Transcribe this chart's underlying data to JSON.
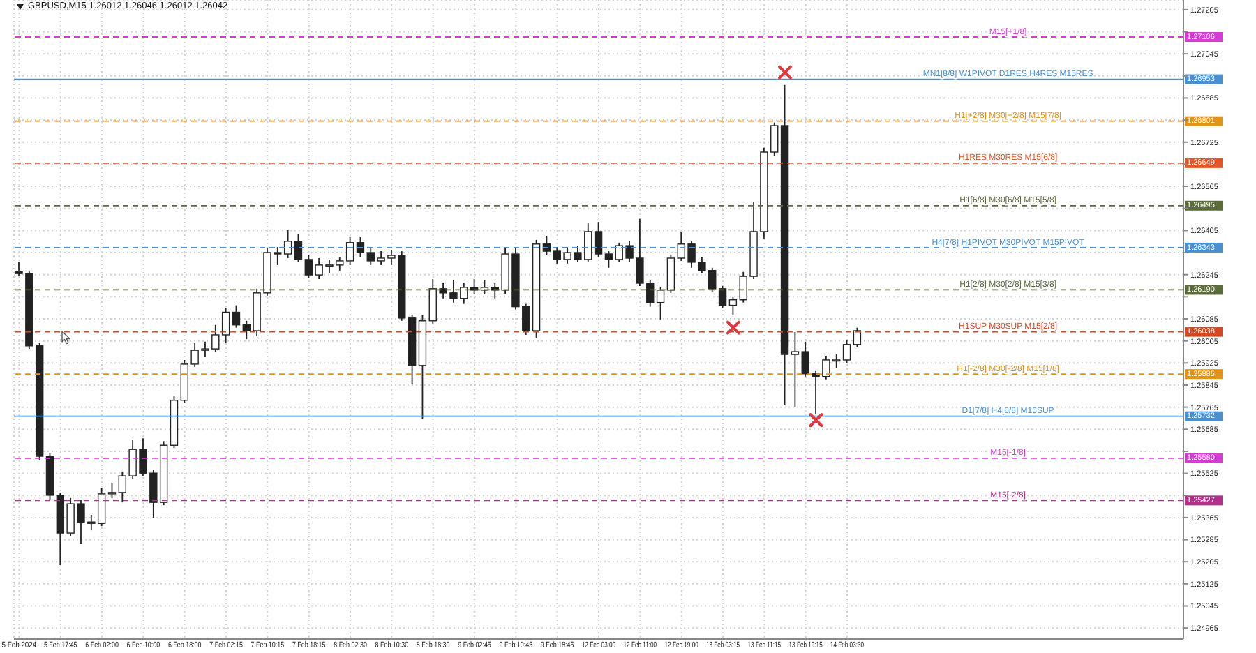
{
  "chart_data": {
    "type": "candlestick",
    "title": "GBPUSD,M15 1.26012 1.26046 1.26012 1.26042",
    "color": "#222222",
    "grid": true,
    "ylim": [
      1.24925,
      1.2724
    ],
    "yticks": [
      1.27205,
      {
        "value": 1.27125,
        "label": null
      },
      1.27045,
      {
        "value": 1.26965,
        "label": null
      },
      1.26885,
      {
        "value": 1.26805,
        "label": null
      },
      1.26725,
      {
        "value": 1.26645,
        "label": null
      },
      1.26565,
      {
        "value": 1.26485,
        "label": null
      },
      1.26405,
      {
        "value": 1.26325,
        "label": null
      },
      1.26245,
      {
        "value": 1.26165,
        "label": null
      },
      1.26085,
      1.26005,
      1.25925,
      1.25845,
      1.25765,
      1.25685,
      {
        "value": 1.25605,
        "label": null
      },
      1.25525,
      {
        "value": 1.25445,
        "label": null
      },
      1.25365,
      1.25285,
      1.25205,
      1.25125,
      1.25045,
      1.24965
    ],
    "categories": [
      "5 Feb 2024",
      null,
      null,
      null,
      "5 Feb 17:45",
      null,
      null,
      null,
      "6 Feb 02:00",
      null,
      null,
      null,
      "6 Feb 10:00",
      null,
      null,
      null,
      "6 Feb 18:00",
      null,
      null,
      null,
      "7 Feb 02:15",
      null,
      null,
      null,
      "7 Feb 10:15",
      null,
      null,
      null,
      "7 Feb 18:15",
      null,
      null,
      null,
      "8 Feb 02:30",
      null,
      null,
      null,
      "8 Feb 10:30",
      null,
      null,
      null,
      "8 Feb 18:30",
      null,
      null,
      null,
      "9 Feb 02:45",
      null,
      null,
      null,
      "9 Feb 10:45",
      null,
      null,
      null,
      "9 Feb 18:45",
      null,
      null,
      null,
      "12 Feb 03:00",
      null,
      null,
      null,
      "12 Feb 11:00",
      null,
      null,
      null,
      "12 Feb 19:00",
      null,
      null,
      null,
      "13 Feb 03:15",
      null,
      null,
      null,
      "13 Feb 11:15",
      null,
      null,
      null,
      "13 Feb 19:15",
      null,
      null,
      null,
      "14 Feb 03:30",
      null,
      null,
      null,
      null,
      null,
      null,
      null,
      null,
      null,
      null,
      null,
      null,
      null,
      null,
      null,
      null,
      null,
      null,
      null,
      null,
      null,
      null,
      null,
      null,
      null,
      null,
      null,
      null,
      null,
      null,
      null,
      null
    ],
    "ohlc": [
      [
        1.26255,
        1.2629,
        1.26239,
        1.26249
      ],
      [
        1.26249,
        1.2626,
        1.25976,
        1.25987
      ],
      [
        1.25987,
        1.25997,
        1.25572,
        1.25587
      ],
      [
        1.25587,
        1.25597,
        1.2543,
        1.25446
      ],
      [
        1.25446,
        1.25456,
        1.25193,
        1.25309
      ],
      [
        1.25309,
        1.25436,
        1.25299,
        1.25415
      ],
      [
        1.25415,
        1.2543,
        1.25269,
        1.25349
      ],
      [
        1.25349,
        1.25375,
        1.25319,
        1.25344
      ],
      [
        1.25344,
        1.25471,
        1.25334,
        1.25451
      ],
      [
        1.25451,
        1.25491,
        1.25436,
        1.25456
      ],
      [
        1.25456,
        1.25532,
        1.2542,
        1.25516
      ],
      [
        1.25516,
        1.25647,
        1.25506,
        1.25612
      ],
      [
        1.25612,
        1.25652,
        1.25516,
        1.25526
      ],
      [
        1.25526,
        1.25537,
        1.25365,
        1.2542
      ],
      [
        1.2542,
        1.25642,
        1.2541,
        1.25627
      ],
      [
        1.25627,
        1.25805,
        1.25617,
        1.2579
      ],
      [
        1.2579,
        1.25936,
        1.2578,
        1.25921
      ],
      [
        1.25921,
        1.25997,
        1.25911,
        1.25971
      ],
      [
        1.25971,
        1.26002,
        1.25946,
        1.25976
      ],
      [
        1.25976,
        1.26063,
        1.25966,
        1.26027
      ],
      [
        1.26027,
        1.26124,
        1.25997,
        1.26109
      ],
      [
        1.26109,
        1.26134,
        1.26053,
        1.26063
      ],
      [
        1.26063,
        1.26078,
        1.26012,
        1.26042
      ],
      [
        1.26042,
        1.26194,
        1.26022,
        1.26179
      ],
      [
        1.26179,
        1.2634,
        1.26169,
        1.26325
      ],
      [
        1.26325,
        1.26345,
        1.2628,
        1.2632
      ],
      [
        1.2632,
        1.26406,
        1.26305,
        1.26366
      ],
      [
        1.26366,
        1.26391,
        1.2629,
        1.263
      ],
      [
        1.263,
        1.26315,
        1.26234,
        1.26244
      ],
      [
        1.26244,
        1.26305,
        1.26229,
        1.2628
      ],
      [
        1.2628,
        1.263,
        1.26249,
        1.2628
      ],
      [
        1.2628,
        1.2631,
        1.2626,
        1.26295
      ],
      [
        1.26295,
        1.26381,
        1.2628,
        1.26361
      ],
      [
        1.26361,
        1.26381,
        1.2631,
        1.26325
      ],
      [
        1.26325,
        1.2634,
        1.2628,
        1.26295
      ],
      [
        1.26295,
        1.2633,
        1.2628,
        1.26305
      ],
      [
        1.26305,
        1.26335,
        1.2628,
        1.26315
      ],
      [
        1.26315,
        1.2633,
        1.26078,
        1.26088
      ],
      [
        1.26088,
        1.26098,
        1.2585,
        1.25916
      ],
      [
        1.25916,
        1.26098,
        1.25723,
        1.26078
      ],
      [
        1.26078,
        1.26229,
        1.26068,
        1.26194
      ],
      [
        1.26194,
        1.26214,
        1.26159,
        1.26179
      ],
      [
        1.26179,
        1.26224,
        1.26144,
        1.26159
      ],
      [
        1.26159,
        1.26214,
        1.26139,
        1.26199
      ],
      [
        1.26199,
        1.26229,
        1.26174,
        1.26189
      ],
      [
        1.26189,
        1.26224,
        1.26174,
        1.26199
      ],
      [
        1.26199,
        1.26214,
        1.26159,
        1.26189
      ],
      [
        1.26189,
        1.26345,
        1.26174,
        1.2632
      ],
      [
        1.2632,
        1.2634,
        1.26119,
        1.26129
      ],
      [
        1.26129,
        1.26139,
        1.26027,
        1.26042
      ],
      [
        1.26042,
        1.26371,
        1.26017,
        1.26356
      ],
      [
        1.26356,
        1.26386,
        1.26315,
        1.2633
      ],
      [
        1.2633,
        1.2634,
        1.26285,
        1.263
      ],
      [
        1.263,
        1.2634,
        1.26285,
        1.26325
      ],
      [
        1.26325,
        1.2635,
        1.2629,
        1.263
      ],
      [
        1.263,
        1.26431,
        1.2629,
        1.26401
      ],
      [
        1.26401,
        1.26436,
        1.2631,
        1.2632
      ],
      [
        1.2632,
        1.2633,
        1.2627,
        1.263
      ],
      [
        1.263,
        1.26361,
        1.2629,
        1.2635
      ],
      [
        1.2635,
        1.26366,
        1.2629,
        1.26305
      ],
      [
        1.26305,
        1.26447,
        1.26204,
        1.26214
      ],
      [
        1.26214,
        1.26224,
        1.26129,
        1.26144
      ],
      [
        1.26144,
        1.26199,
        1.26083,
        1.26189
      ],
      [
        1.26189,
        1.26315,
        1.26179,
        1.26305
      ],
      [
        1.26305,
        1.26401,
        1.26295,
        1.26356
      ],
      [
        1.26356,
        1.26366,
        1.2627,
        1.2629
      ],
      [
        1.2629,
        1.2631,
        1.26249,
        1.2626
      ],
      [
        1.2626,
        1.2627,
        1.26184,
        1.26194
      ],
      [
        1.26194,
        1.26204,
        1.26124,
        1.26134
      ],
      [
        1.26134,
        1.26164,
        1.26098,
        1.26154
      ],
      [
        1.26154,
        1.26255,
        1.26144,
        1.26239
      ],
      [
        1.26239,
        1.26507,
        1.26229,
        1.26401
      ],
      [
        1.26401,
        1.26705,
        1.26376,
        1.26689
      ],
      [
        1.26689,
        1.26796,
        1.26674,
        1.26785
      ],
      [
        1.26785,
        1.26932,
        1.25774,
        1.25956
      ],
      [
        1.25956,
        1.26037,
        1.25764,
        1.25966
      ],
      [
        1.25966,
        1.26002,
        1.25876,
        1.25886
      ],
      [
        1.25886,
        1.25896,
        1.25738,
        1.25876
      ],
      [
        1.25876,
        1.25951,
        1.25866,
        1.25936
      ],
      [
        1.25936,
        1.25956,
        1.25906,
        1.25936
      ],
      [
        1.25936,
        1.26007,
        1.25926,
        1.25992
      ],
      [
        1.25992,
        1.26053,
        1.25982,
        1.26042
      ],
      null,
      null,
      null,
      null,
      null,
      null,
      null,
      null,
      null,
      null,
      null,
      null,
      null,
      null,
      null,
      null,
      null,
      null,
      null,
      null,
      null,
      null,
      null,
      null,
      null,
      null,
      null,
      null,
      null,
      null,
      null
    ],
    "series": [
      {
        "type": "scatter",
        "color": "#e0393e",
        "marker": "cross",
        "values": [
          null,
          null,
          null,
          null,
          null,
          null,
          null,
          null,
          null,
          null,
          null,
          null,
          null,
          null,
          null,
          null,
          null,
          null,
          null,
          null,
          null,
          null,
          null,
          null,
          null,
          null,
          null,
          null,
          null,
          null,
          null,
          null,
          null,
          null,
          null,
          null,
          null,
          null,
          null,
          null,
          null,
          null,
          null,
          null,
          null,
          null,
          null,
          null,
          null,
          null,
          null,
          null,
          null,
          null,
          null,
          null,
          null,
          null,
          null,
          null,
          null,
          null,
          null,
          null,
          null,
          null,
          null,
          null,
          null,
          1.26053,
          null,
          null,
          null,
          null,
          1.26978,
          null,
          null,
          1.25718,
          null,
          null,
          null,
          null,
          null,
          null,
          null,
          null,
          null,
          null,
          null,
          null,
          null,
          null,
          null,
          null,
          null,
          null,
          null,
          null,
          null,
          null,
          null,
          null,
          null,
          null,
          null,
          null,
          null,
          null,
          null,
          null,
          null,
          null,
          null
        ]
      }
    ],
    "ref_lines": [
      {
        "axis": "y",
        "value": 1.27106,
        "label": "M15[+1/8]",
        "color": "#d63bd6",
        "line_style": "dashed"
      },
      {
        "axis": "y",
        "value": 1.26953,
        "label": "MN1[8/8] W1PIVOT D1RES H4RES M15RES",
        "color": "#4a90d0",
        "line_style": "solid"
      },
      {
        "axis": "y",
        "value": 1.26801,
        "label": "H1[+2/8] M30[+2/8] M15[7/8]",
        "color": "#e0941a",
        "line_style": "dashed"
      },
      {
        "axis": "y",
        "value": 1.26649,
        "label": "H1RES M30RES M15[6/8]",
        "color": "#e0582a",
        "line_style": "dashed"
      },
      {
        "axis": "y",
        "value": 1.26495,
        "label": "H1[6/8] M30[6/8] M15[5/8]",
        "color": "#5c6b3a",
        "line_style": "dashed"
      },
      {
        "axis": "y",
        "value": 1.26343,
        "label": "H4[7/8] H1PIVOT M30PIVOT M15PIVOT",
        "color": "#4a90d0",
        "line_style": "dashed"
      },
      {
        "axis": "y",
        "value": 1.2619,
        "label": "H1[2/8] M30[2/8] M15[3/8]",
        "color": "#5c6b3a",
        "line_style": "dashed"
      },
      {
        "axis": "y",
        "value": 1.26038,
        "label": "H1SUP M30SUP M15[2/8]",
        "color": "#d04a24",
        "line_style": "dashed"
      },
      {
        "axis": "y",
        "value": 1.25885,
        "label": "H1[-2/8] M30[-2/8] M15[1/8]",
        "color": "#e0941a",
        "line_style": "dashed"
      },
      {
        "axis": "y",
        "value": 1.25732,
        "label": "D1[7/8] H4[6/8] M15SUP",
        "color": "#4a90d0",
        "line_style": "solid"
      },
      {
        "axis": "y",
        "value": 1.2558,
        "label": "M15[-1/8]",
        "color": "#d63bd6",
        "line_style": "dashed"
      },
      {
        "axis": "y",
        "value": 1.25427,
        "label": "M15[-2/8]",
        "color": "#b0308a",
        "line_style": "dashed"
      }
    ],
    "annotations": [
      "1.27106",
      "1.26953",
      "1.26801",
      "1.26649",
      "1.26495",
      "1.26343",
      "1.26190",
      "1.26038",
      "1.25885",
      "1.25732",
      "1.25580",
      "1.25427"
    ]
  }
}
